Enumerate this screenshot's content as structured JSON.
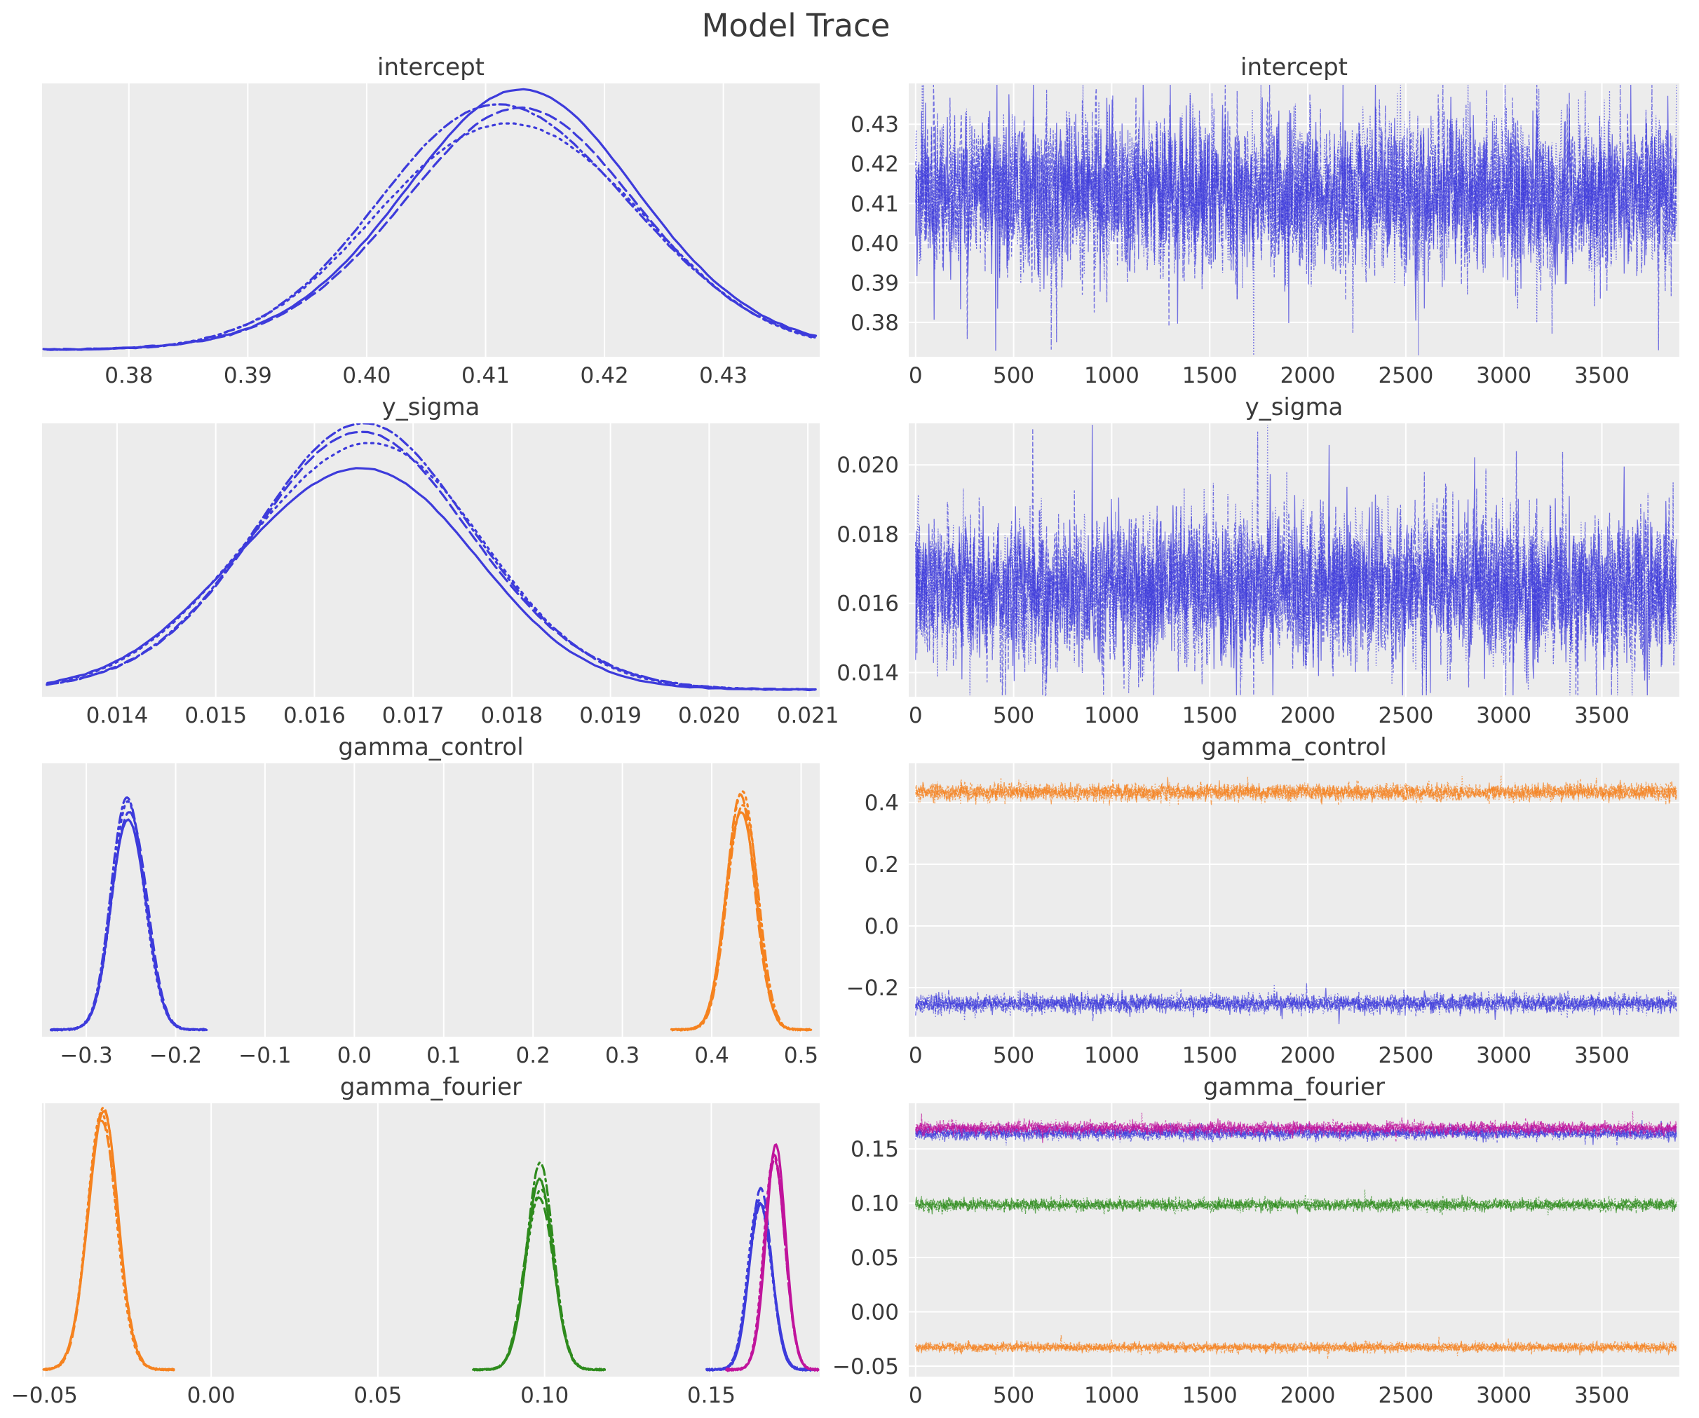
{
  "chart_data": {
    "type": "line",
    "kind": "mcmc-posterior-and-trace-grid",
    "suptitle": "Model Trace",
    "n_chains": 4,
    "chain_linestyles": [
      "solid",
      "dashed",
      "dashdot",
      "dotted"
    ],
    "columns": [
      "posterior-kde",
      "sample-trace"
    ],
    "grid": true,
    "legend": false,
    "trace_x": {
      "lim": [
        -35,
        3895
      ],
      "data_max": 3880,
      "ticks": [
        {
          "v": 0,
          "t": "0"
        },
        {
          "v": 500,
          "t": "500"
        },
        {
          "v": 1000,
          "t": "1000"
        },
        {
          "v": 1500,
          "t": "1500"
        },
        {
          "v": 2000,
          "t": "2000"
        },
        {
          "v": 2500,
          "t": "2500"
        },
        {
          "v": 3000,
          "t": "3000"
        },
        {
          "v": 3500,
          "t": "3500"
        }
      ]
    },
    "params": [
      {
        "name": "intercept",
        "kde": {
          "xlim": [
            0.3727,
            0.4381
          ],
          "ticks": [
            {
              "v": 0.38,
              "t": "0.38"
            },
            {
              "v": 0.39,
              "t": "0.39"
            },
            {
              "v": 0.4,
              "t": "0.40"
            },
            {
              "v": 0.41,
              "t": "0.41"
            },
            {
              "v": 0.42,
              "t": "0.42"
            },
            {
              "v": 0.43,
              "t": "0.43"
            }
          ]
        },
        "trace": {
          "ylim": [
            0.3713,
            0.4403
          ],
          "yticks": [
            {
              "v": 0.38,
              "t": "0.38"
            },
            {
              "v": 0.39,
              "t": "0.39"
            },
            {
              "v": 0.4,
              "t": "0.40"
            },
            {
              "v": 0.41,
              "t": "0.41"
            },
            {
              "v": 0.42,
              "t": "0.42"
            },
            {
              "v": 0.43,
              "t": "0.43"
            }
          ],
          "spike_p": 0.03,
          "spike_k": 2.2
        },
        "series": [
          {
            "label": "intercept",
            "color": "#3d3bdb",
            "mean": 0.4126,
            "sd": 0.0104,
            "peak": 0.93,
            "trace_sd": 0.0095
          }
        ]
      },
      {
        "name": "y_sigma",
        "kde": {
          "xlim": [
            0.01324,
            0.02112
          ],
          "ticks": [
            {
              "v": 0.014,
              "t": "0.014"
            },
            {
              "v": 0.015,
              "t": "0.015"
            },
            {
              "v": 0.016,
              "t": "0.016"
            },
            {
              "v": 0.017,
              "t": "0.017"
            },
            {
              "v": 0.018,
              "t": "0.018"
            },
            {
              "v": 0.019,
              "t": "0.019"
            },
            {
              "v": 0.02,
              "t": "0.020"
            },
            {
              "v": 0.021,
              "t": "0.021"
            }
          ]
        },
        "trace": {
          "ylim": [
            0.0133,
            0.0212
          ],
          "yticks": [
            {
              "v": 0.014,
              "t": "0.014"
            },
            {
              "v": 0.016,
              "t": "0.016"
            },
            {
              "v": 0.018,
              "t": "0.018"
            },
            {
              "v": 0.02,
              "t": "0.020"
            }
          ],
          "spike_p": 0.03,
          "spike_k": 2.3
        },
        "series": [
          {
            "label": "y_sigma",
            "color": "#3d3bdb",
            "mean": 0.01643,
            "sd": 0.00116,
            "peak": 0.94,
            "trace_sd": 0.00105
          }
        ]
      },
      {
        "name": "gamma_control",
        "kde": {
          "xlim": [
            -0.3495,
            0.5208
          ],
          "ticks": [
            {
              "v": -0.3,
              "t": "−0.3"
            },
            {
              "v": -0.2,
              "t": "−0.2"
            },
            {
              "v": -0.1,
              "t": "−0.1"
            },
            {
              "v": 0.0,
              "t": "0.0"
            },
            {
              "v": 0.1,
              "t": "0.1"
            },
            {
              "v": 0.2,
              "t": "0.2"
            },
            {
              "v": 0.3,
              "t": "0.3"
            },
            {
              "v": 0.4,
              "t": "0.4"
            },
            {
              "v": 0.5,
              "t": "0.5"
            }
          ]
        },
        "trace": {
          "ylim": [
            -0.359,
            0.527
          ],
          "yticks": [
            {
              "v": 0.4,
              "t": "0.4"
            },
            {
              "v": 0.2,
              "t": "0.2"
            },
            {
              "v": 0.0,
              "t": "0.0"
            },
            {
              "v": -0.2,
              "t": "−0.2"
            }
          ],
          "spike_p": 0.012,
          "spike_k": 1.9
        },
        "series": [
          {
            "label": "gamma_control[0]",
            "color": "#3d3bdb",
            "mean": -0.2515,
            "sd": 0.0185,
            "peak": 0.89,
            "trace_sd": 0.0145
          },
          {
            "label": "gamma_control[1]",
            "color": "#f5821f",
            "mean": 0.4335,
            "sd": 0.0165,
            "peak": 0.92,
            "trace_sd": 0.0135
          }
        ]
      },
      {
        "name": "gamma_fourier",
        "kde": {
          "xlim": [
            -0.0507,
            0.1825
          ],
          "ticks": [
            {
              "v": -0.05,
              "t": "−0.05"
            },
            {
              "v": 0.0,
              "t": "0.00"
            },
            {
              "v": 0.05,
              "t": "0.05"
            },
            {
              "v": 0.1,
              "t": "0.10"
            },
            {
              "v": 0.15,
              "t": "0.15"
            }
          ]
        },
        "trace": {
          "ylim": [
            -0.0597,
            0.192
          ],
          "yticks": [
            {
              "v": 0.15,
              "t": "0.15"
            },
            {
              "v": 0.1,
              "t": "0.10"
            },
            {
              "v": 0.05,
              "t": "0.05"
            },
            {
              "v": 0.0,
              "t": "0.00"
            },
            {
              "v": -0.05,
              "t": "−0.05"
            }
          ],
          "spike_p": 0.012,
          "spike_k": 1.8
        },
        "series": [
          {
            "label": "gamma_fourier[1]",
            "color": "#f5821f",
            "mean": -0.0327,
            "sd": 0.0046,
            "peak": 0.95,
            "trace_sd": 0.0021
          },
          {
            "label": "gamma_fourier[2]",
            "color": "#2e8b1d",
            "mean": 0.0985,
            "sd": 0.0042,
            "peak": 0.73,
            "trace_sd": 0.0027
          },
          {
            "label": "gamma_fourier[0]",
            "color": "#3d3bdb",
            "mean": 0.1647,
            "sd": 0.0034,
            "peak": 0.66,
            "trace_sd": 0.003
          },
          {
            "label": "gamma_fourier[3]",
            "color": "#c0149c",
            "mean": 0.1692,
            "sd": 0.0031,
            "peak": 0.86,
            "trace_sd": 0.0028
          }
        ]
      }
    ],
    "style": {
      "axes_bg": "#ececec",
      "grid_color": "#ffffff",
      "text_color": "#3a3a3a",
      "chain_blue": "#3d3bdb",
      "chain_orange": "#f5821f",
      "chain_green": "#2e8b1d",
      "chain_magenta": "#c0149c"
    }
  }
}
